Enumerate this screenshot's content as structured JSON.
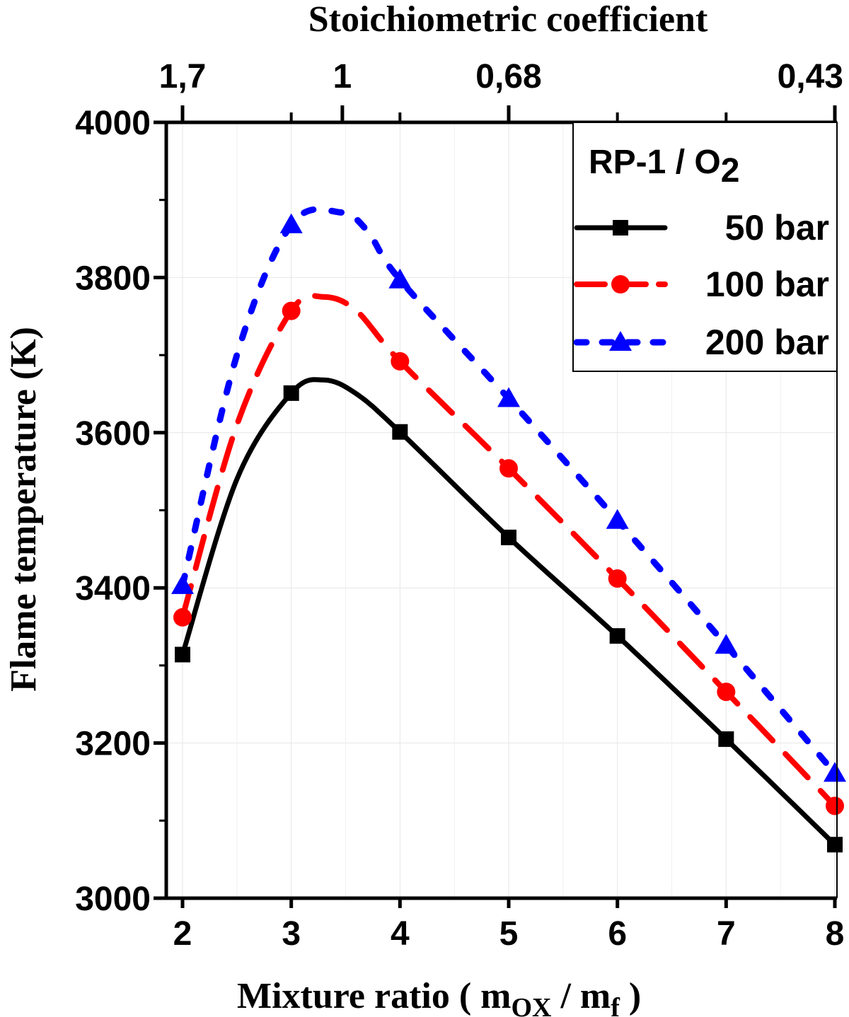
{
  "chart_data": {
    "type": "line",
    "title": "",
    "xlabel": "Mixture ratio ( m",
    "xlabel_sub1": "OX",
    "xlabel_mid": " / m",
    "xlabel_sub2": "f",
    "xlabel_end": " )",
    "ylabel": "Flame temperature (K)",
    "x2label": "Stoichiometric coefficient",
    "xlim": [
      2,
      8
    ],
    "ylim": [
      3000,
      4000
    ],
    "xticks": [
      2,
      3,
      4,
      5,
      6,
      7,
      8
    ],
    "xtick_labels": [
      "2",
      "3",
      "4",
      "5",
      "6",
      "7",
      "8"
    ],
    "yticks": [
      3000,
      3200,
      3400,
      3600,
      3800,
      4000
    ],
    "ytick_labels": [
      "3000",
      "3200",
      "3400",
      "3600",
      "3800",
      "4000"
    ],
    "x2ticks": [
      {
        "x": 2.0,
        "label": "1,7"
      },
      {
        "x": 3.47,
        "label": "1"
      },
      {
        "x": 5.0,
        "label": "0,68"
      },
      {
        "x": 8.0,
        "label": "0,43"
      }
    ],
    "x2minor": [
      3.0,
      4.0,
      6.0,
      7.0
    ],
    "grid": true,
    "legend": {
      "title_main": "RP-1 / O",
      "title_sub": "2",
      "position": "top-right"
    },
    "series": [
      {
        "name": "50 bar",
        "color": "#000000",
        "marker": "square",
        "line": "solid",
        "x": [
          2,
          3,
          4,
          5,
          6,
          7,
          8
        ],
        "y": [
          3314,
          3651,
          3601,
          3465,
          3338,
          3205,
          3069
        ],
        "curve_x": [
          2,
          2.5,
          3,
          3.3,
          3.6,
          4,
          5,
          6,
          7,
          8
        ],
        "curve_y": [
          3314,
          3540,
          3651,
          3668,
          3650,
          3601,
          3465,
          3338,
          3205,
          3069
        ]
      },
      {
        "name": "100 bar",
        "color": "#ff0000",
        "marker": "circle",
        "line": "dashed",
        "x": [
          2,
          3,
          4,
          5,
          6,
          7,
          8
        ],
        "y": [
          3362,
          3757,
          3692,
          3554,
          3412,
          3266,
          3119
        ],
        "curve_x": [
          2,
          2.5,
          3,
          3.3,
          3.6,
          4,
          5,
          6,
          7,
          8
        ],
        "curve_y": [
          3362,
          3610,
          3757,
          3775,
          3757,
          3692,
          3554,
          3412,
          3266,
          3119
        ]
      },
      {
        "name": "200 bar",
        "color": "#0000ff",
        "marker": "triangle",
        "line": "dotted",
        "x": [
          2,
          3,
          4,
          5,
          6,
          7,
          8
        ],
        "y": [
          3403,
          3868,
          3797,
          3644,
          3487,
          3326,
          3161
        ],
        "curve_x": [
          2,
          2.5,
          3,
          3.45,
          3.7,
          4,
          5,
          6,
          7,
          8
        ],
        "curve_y": [
          3403,
          3700,
          3868,
          3884,
          3860,
          3797,
          3644,
          3487,
          3326,
          3161
        ]
      }
    ]
  }
}
